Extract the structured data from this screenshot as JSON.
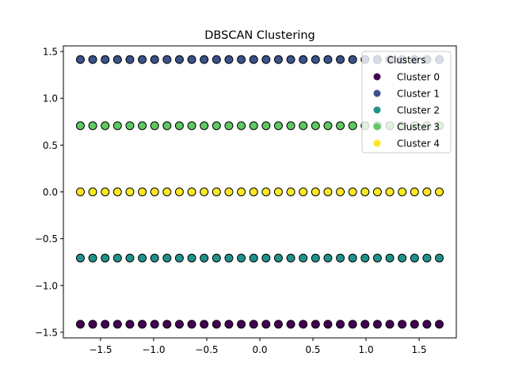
{
  "chart_data": {
    "type": "scatter",
    "title": "DBSCAN Clustering",
    "xlabel": "",
    "ylabel": "",
    "xlim": [
      -1.85,
      1.85
    ],
    "ylim": [
      -1.56,
      1.56
    ],
    "xticks": [
      -1.5,
      -1.0,
      -0.5,
      0.0,
      0.5,
      1.0,
      1.5
    ],
    "xtick_labels": [
      "−1.5",
      "−1.0",
      "−0.5",
      "0.0",
      "0.5",
      "1.0",
      "1.5"
    ],
    "yticks": [
      -1.5,
      -1.0,
      -0.5,
      0.0,
      0.5,
      1.0,
      1.5
    ],
    "ytick_labels": [
      "−1.5",
      "−1.0",
      "−0.5",
      "0.0",
      "0.5",
      "1.0",
      "1.5"
    ],
    "grid": false,
    "legend": {
      "title": "Clusters",
      "placement": "upper right"
    },
    "x_range": [
      -1.69,
      1.69
    ],
    "points_per_row": 30,
    "series": [
      {
        "name": "Cluster 0",
        "color": "#440154",
        "y": -1.414
      },
      {
        "name": "Cluster 1",
        "color": "#3b528b",
        "y": 1.414
      },
      {
        "name": "Cluster 2",
        "color": "#21918c",
        "y": -0.707
      },
      {
        "name": "Cluster 3",
        "color": "#5ec962",
        "y": 0.707
      },
      {
        "name": "Cluster 4",
        "color": "#fde725",
        "y": 0.0
      }
    ]
  }
}
